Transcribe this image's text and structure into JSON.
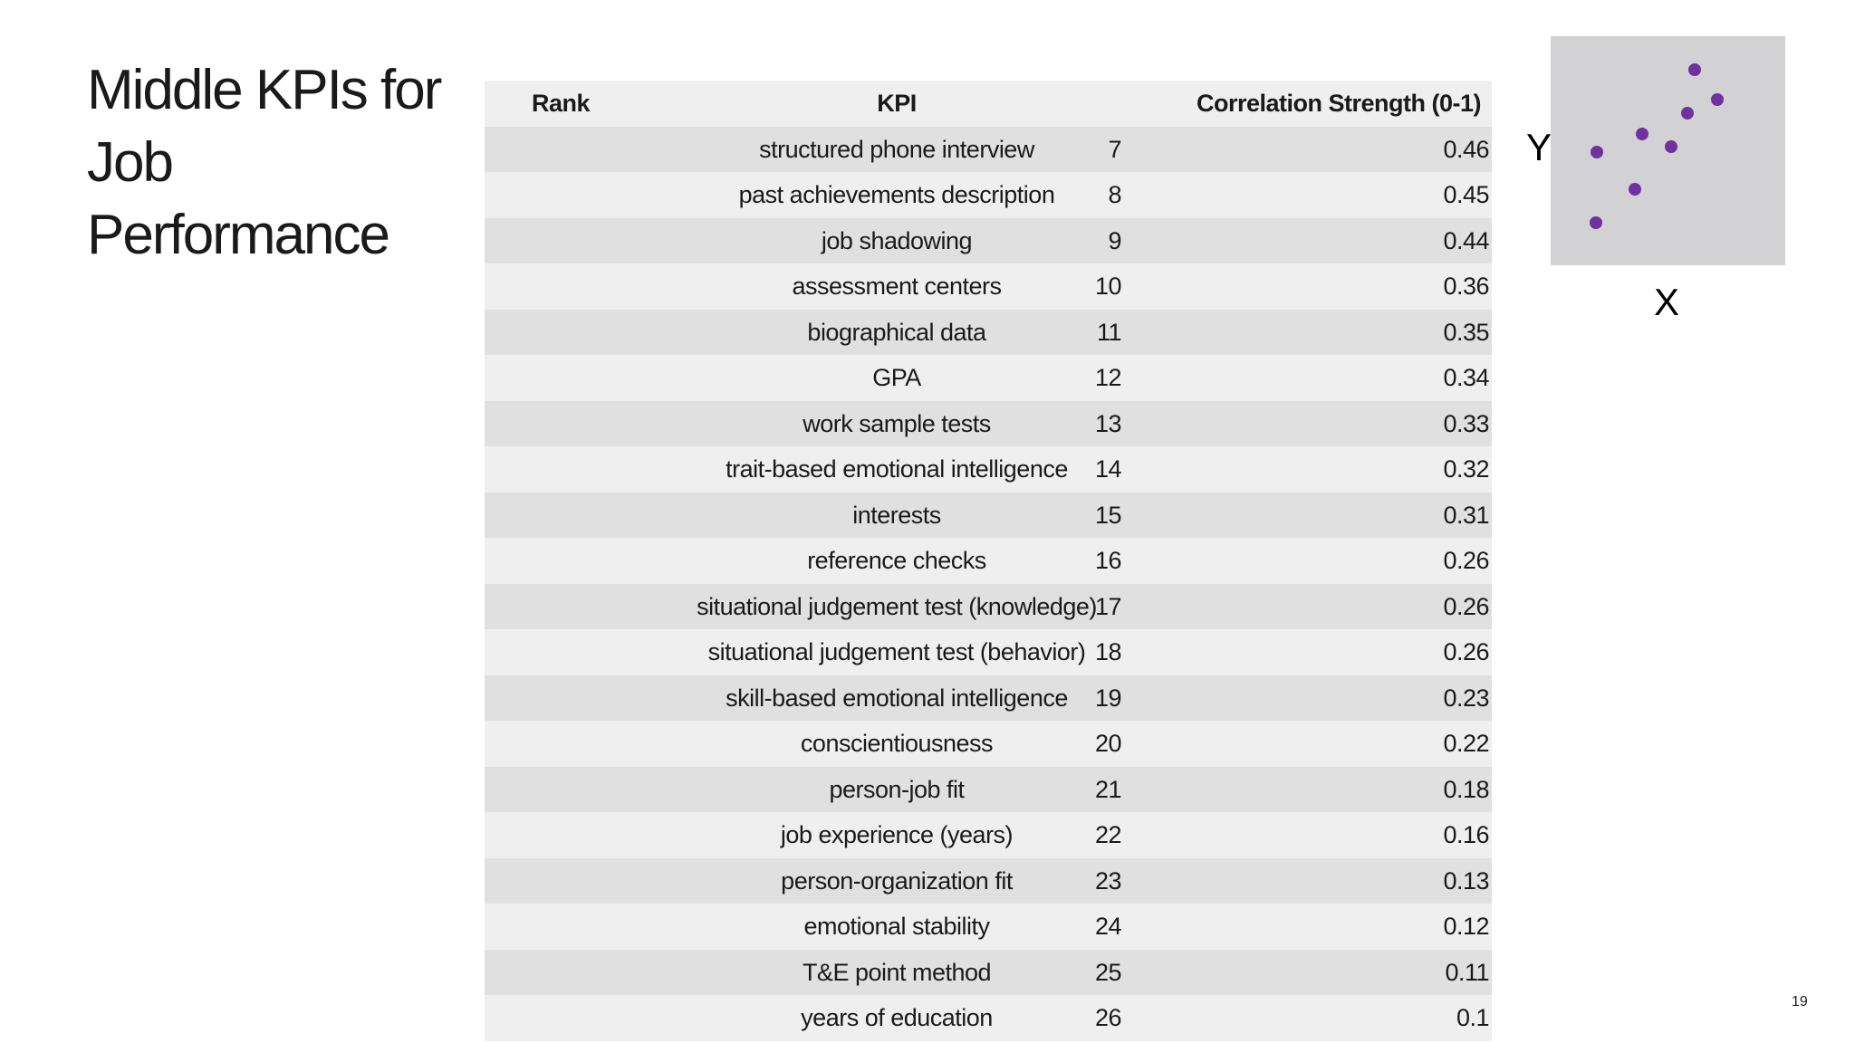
{
  "title": "Middle KPIs for Job Performance",
  "table": {
    "header": [
      "Rank",
      "KPI",
      "Correlation Strength (0-1)"
    ],
    "rows": [
      [
        7,
        "structured phone interview",
        0.46
      ],
      [
        8,
        "past achievements description",
        0.45
      ],
      [
        9,
        "job shadowing",
        0.44
      ],
      [
        10,
        "assessment centers",
        0.36
      ],
      [
        11,
        "biographical data",
        0.35
      ],
      [
        12,
        "GPA",
        0.34
      ],
      [
        13,
        "work sample tests",
        0.33
      ],
      [
        14,
        "trait-based emotional intelligence",
        0.32
      ],
      [
        15,
        "interests",
        0.31
      ],
      [
        16,
        "reference checks",
        0.26
      ],
      [
        17,
        "situational judgement test (knowledge)",
        0.26
      ],
      [
        18,
        "situational judgement test (behavior)",
        0.26
      ],
      [
        19,
        "skill-based emotional intelligence",
        0.23
      ],
      [
        20,
        "conscientiousness",
        0.22
      ],
      [
        21,
        "person-job fit",
        0.18
      ],
      [
        22,
        "job experience (years)",
        0.16
      ],
      [
        23,
        "person-organization fit",
        0.13
      ],
      [
        24,
        "emotional stability",
        0.12
      ],
      [
        25,
        "T&E point method",
        0.11
      ],
      [
        26,
        "years of education",
        0.1
      ]
    ]
  },
  "icon": {
    "y_label": "Y",
    "x_label": "X"
  },
  "page_number": "19"
}
